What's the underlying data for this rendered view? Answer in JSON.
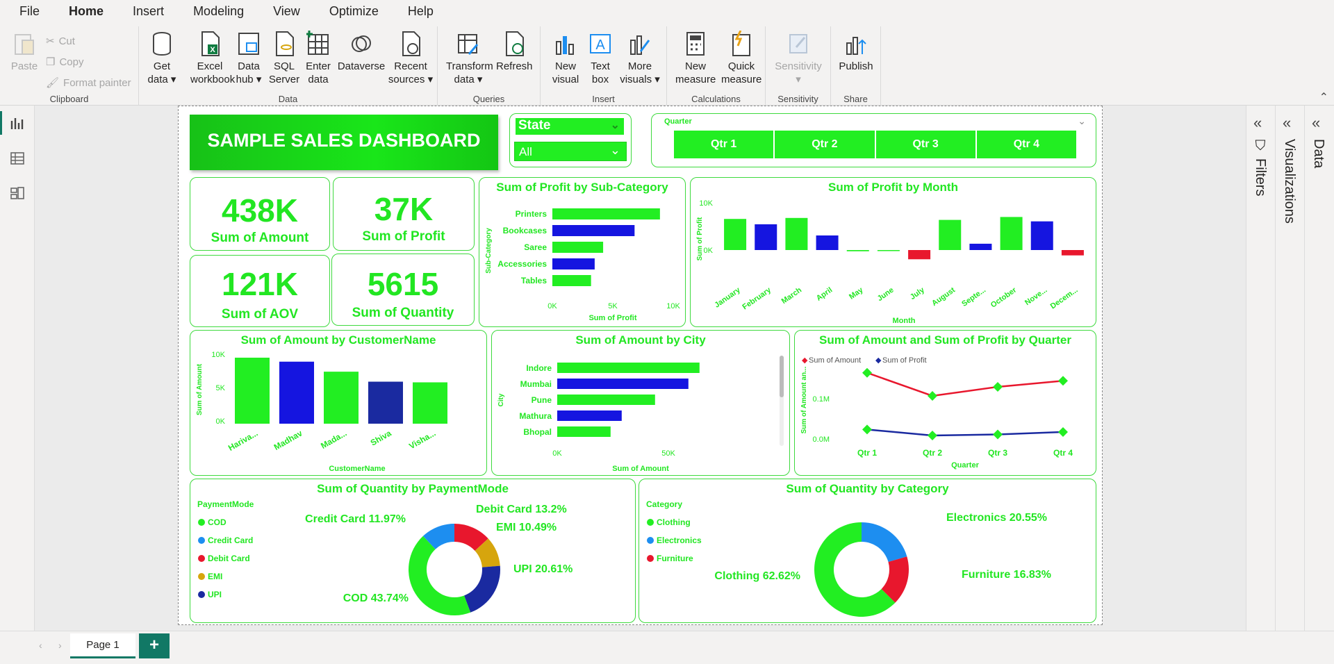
{
  "menu": {
    "file": "File",
    "home": "Home",
    "insert": "Insert",
    "modeling": "Modeling",
    "view": "View",
    "optimize": "Optimize",
    "help": "Help"
  },
  "ribbon": {
    "paste": "Paste",
    "cut": "Cut",
    "copy": "Copy",
    "format_painter": "Format painter",
    "clipboard": "Clipboard",
    "get_data": "Get data",
    "excel": "Excel workbook",
    "data_hub": "Data hub",
    "sql": "SQL Server",
    "enter_data": "Enter data",
    "dataverse": "Dataverse",
    "recent": "Recent sources",
    "data_group": "Data",
    "transform": "Transform data",
    "refresh": "Refresh",
    "queries": "Queries",
    "new_visual": "New visual",
    "text_box": "Text box",
    "more_visuals": "More visuals",
    "insert_group": "Insert",
    "new_measure": "New measure",
    "quick_measure": "Quick measure",
    "calculations": "Calculations",
    "sensitivity": "Sensitivity",
    "sensitivity_group": "Sensitivity",
    "publish": "Publish",
    "share": "Share"
  },
  "panes": {
    "filters": "Filters",
    "visualizations": "Visualizations",
    "data": "Data"
  },
  "pages": {
    "page1": "Page 1",
    "add": "+"
  },
  "dashboard": {
    "title": "SAMPLE SALES DASHBOARD",
    "state_label": "State",
    "state_value": "All",
    "quarter_label": "Quarter",
    "quarters": [
      "Qtr 1",
      "Qtr 2",
      "Qtr 3",
      "Qtr 4"
    ],
    "kpis": [
      {
        "value": "438K",
        "label": "Sum of Amount"
      },
      {
        "value": "37K",
        "label": "Sum of Profit"
      },
      {
        "value": "121K",
        "label": "Sum of AOV"
      },
      {
        "value": "5615",
        "label": "Sum of Quantity"
      }
    ]
  },
  "colors": {
    "green": "#22ee22",
    "blue": "#1515e0",
    "red": "#e8172d",
    "navy": "#1a2aa0",
    "yellow": "#d6a50d",
    "lightblue": "#1d8ef0"
  },
  "chart_data": [
    {
      "type": "bar",
      "orientation": "horizontal",
      "title": "Sum of Profit by Sub-Category",
      "categories": [
        "Printers",
        "Bookcases",
        "Saree",
        "Accessories",
        "Tables"
      ],
      "values": [
        8900,
        6800,
        4200,
        3500,
        3200
      ],
      "xlabel": "Sum of Profit",
      "ylabel": "Sub-Category",
      "ticks": [
        "0K",
        "5K",
        "10K"
      ],
      "xlim": [
        0,
        10000
      ]
    },
    {
      "type": "bar",
      "title": "Sum of Profit by Month",
      "categories": [
        "January",
        "February",
        "March",
        "April",
        "May",
        "June",
        "July",
        "August",
        "Septe...",
        "October",
        "Nove...",
        "Decem..."
      ],
      "values": [
        6400,
        5300,
        6600,
        3000,
        -250,
        -150,
        -1900,
        6200,
        1300,
        6800,
        5900,
        -1100
      ],
      "xlabel": "Month",
      "ylabel": "Sum of Profit",
      "ticks": [
        "10K",
        "0K"
      ],
      "ylim": [
        -3000,
        10000
      ]
    },
    {
      "type": "bar",
      "title": "Sum of Amount by CustomerName",
      "categories": [
        "Hariva...",
        "Madhav",
        "Mada...",
        "Shiva",
        "Visha..."
      ],
      "values": [
        9900,
        9300,
        7800,
        6300,
        6200
      ],
      "xlabel": "CustomerName",
      "ylabel": "Sum of Amount",
      "ticks": [
        "10K",
        "5K",
        "0K"
      ],
      "ylim": [
        0,
        10000
      ]
    },
    {
      "type": "bar",
      "orientation": "horizontal",
      "title": "Sum of Amount by City",
      "categories": [
        "Indore",
        "Mumbai",
        "Pune",
        "Mathura",
        "Bhopal"
      ],
      "values": [
        64000,
        59000,
        44000,
        29000,
        24000
      ],
      "xlabel": "Sum of Amount",
      "ylabel": "City",
      "ticks": [
        "0K",
        "50K"
      ],
      "xlim": [
        0,
        75000
      ]
    },
    {
      "type": "line",
      "title": "Sum of Amount and Sum of Profit by Quarter",
      "x": [
        "Qtr 1",
        "Qtr 2",
        "Qtr 3",
        "Qtr 4"
      ],
      "series": [
        {
          "name": "Sum of Amount",
          "values": [
            128000,
            82000,
            100000,
            112000
          ]
        },
        {
          "name": "Sum of Profit",
          "values": [
            15000,
            3000,
            5000,
            10000
          ]
        }
      ],
      "xlabel": "Quarter",
      "ylabel": "Sum of Amount an...",
      "ticks": [
        "0.1M",
        "0.0M"
      ],
      "ylim": [
        -15000,
        165000
      ]
    },
    {
      "type": "pie",
      "title": "Sum of Quantity by PaymentMode",
      "legend_title": "PaymentMode",
      "labels": [
        "COD",
        "Credit Card",
        "Debit Card",
        "EMI",
        "UPI"
      ],
      "values": [
        43.74,
        11.97,
        13.2,
        10.49,
        20.61
      ],
      "slice_labels": [
        "COD 43.74%",
        "Credit Card 11.97%",
        "Debit Card 13.2%",
        "EMI 10.49%",
        "UPI 20.61%"
      ]
    },
    {
      "type": "pie",
      "title": "Sum of Quantity by Category",
      "legend_title": "Category",
      "labels": [
        "Clothing",
        "Electronics",
        "Furniture"
      ],
      "values": [
        62.62,
        20.55,
        16.83
      ],
      "slice_labels": [
        "Clothing 62.62%",
        "Electronics 20.55%",
        "Furniture 16.83%"
      ]
    }
  ]
}
